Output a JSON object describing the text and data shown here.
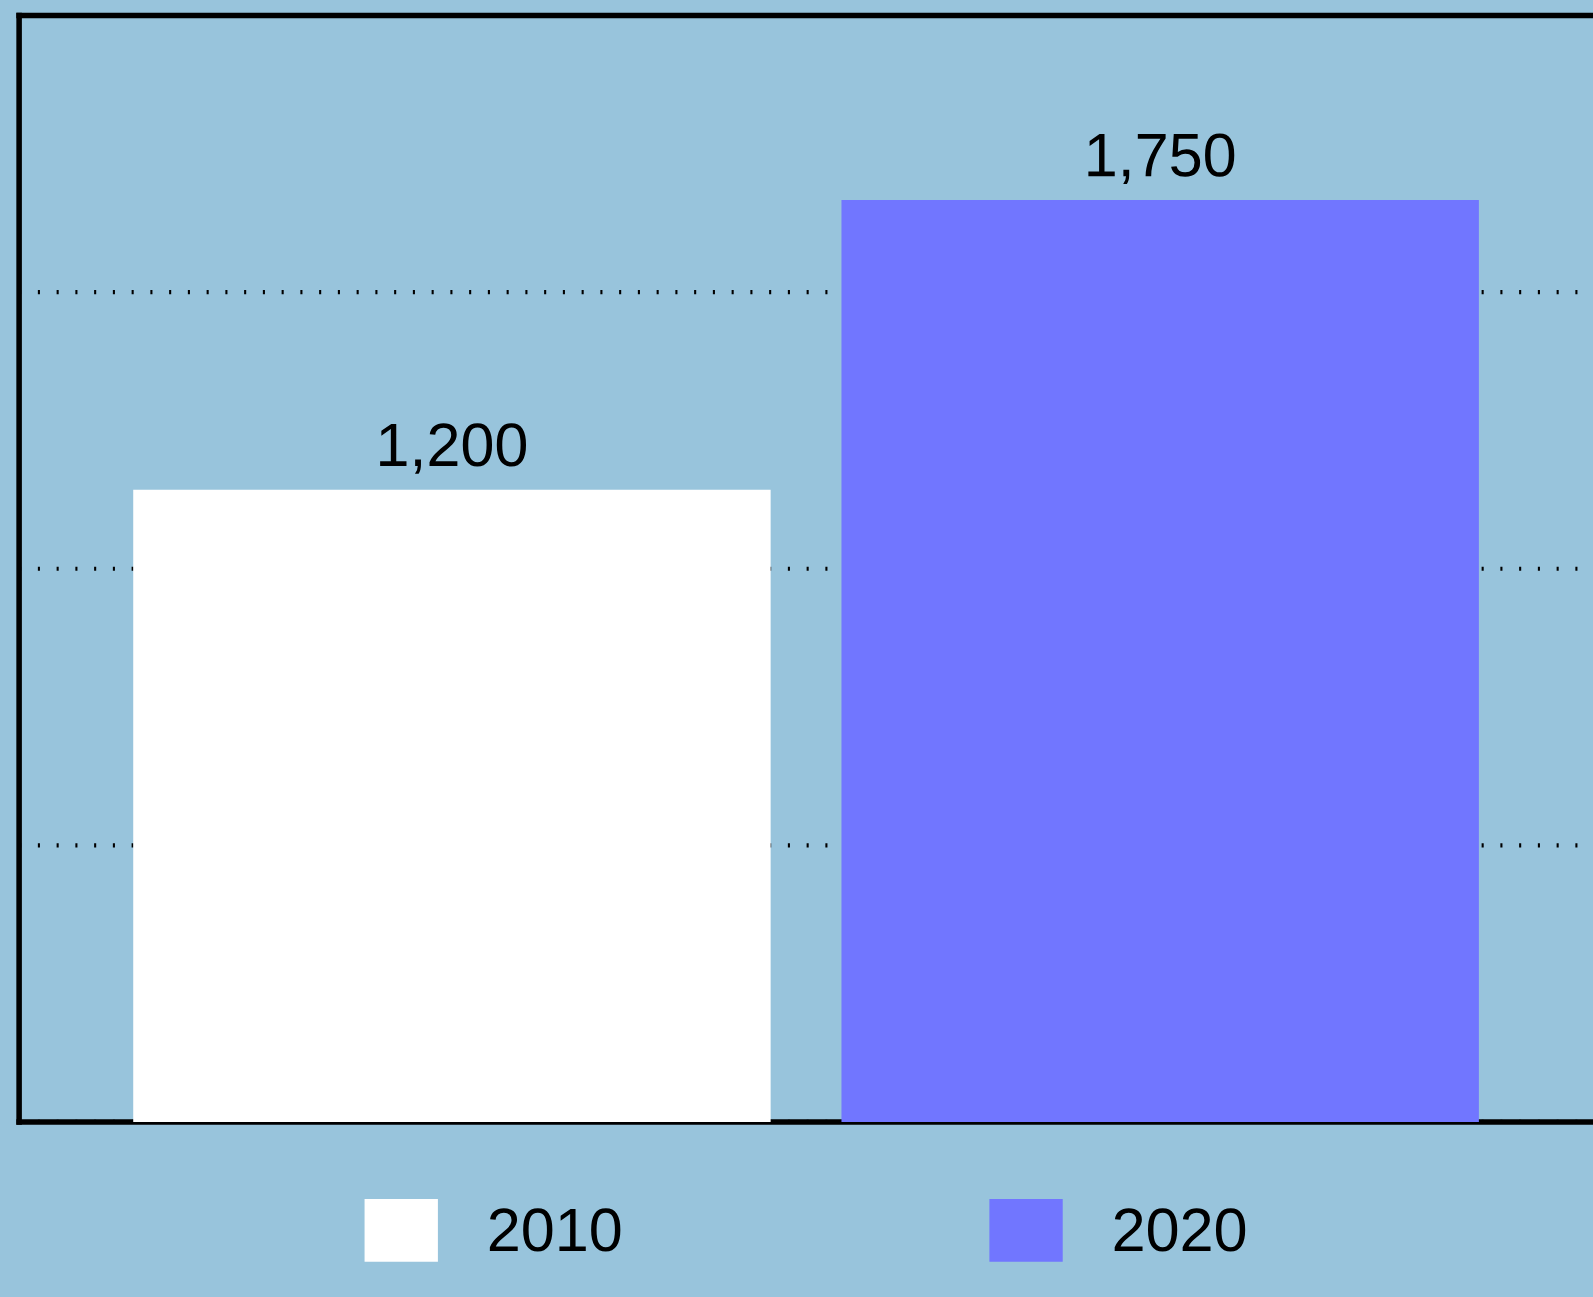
{
  "chart_data": {
    "type": "bar",
    "categories": [
      null
    ],
    "series": [
      {
        "name": "2010",
        "color": "#ffffff",
        "values": [
          1200
        ],
        "value_labels": [
          "1,200"
        ]
      },
      {
        "name": "2020",
        "color": "#7176ff",
        "values": [
          1750
        ],
        "value_labels": [
          "1,750"
        ]
      }
    ],
    "grid": "y",
    "legend": "bottom",
    "tick_labels": false
  }
}
